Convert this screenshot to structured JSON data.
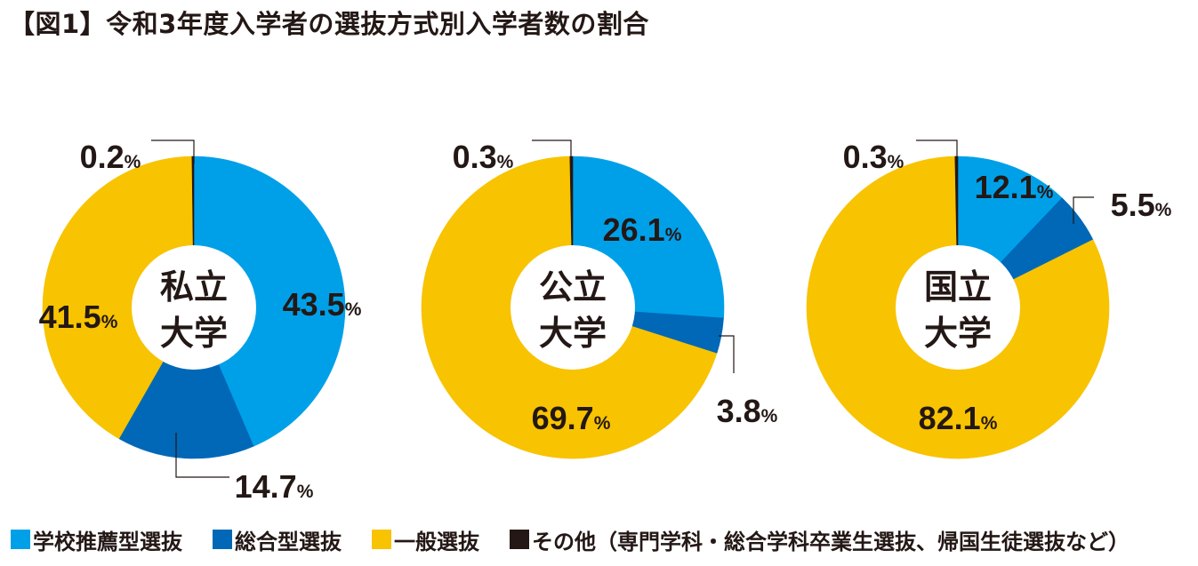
{
  "title": "【図1】令和3年度入学者の選抜方式別入学者数の割合",
  "colors": {
    "school_recommendation": "#00A0E9",
    "comprehensive": "#0068B7",
    "general": "#F8C300",
    "other": "#231815",
    "background": "#FFFFFF"
  },
  "legend": [
    {
      "label": "学校推薦型選抜",
      "color": "#00A0E9"
    },
    {
      "label": "総合型選抜",
      "color": "#0068B7"
    },
    {
      "label": "一般選抜",
      "color": "#F8C300"
    },
    {
      "label": "その他（専門学科・総合学科卒業生選抜、帰国生徒選抜など）",
      "color": "#231815"
    }
  ],
  "chart_data": [
    {
      "type": "pie",
      "center_label": [
        "私立",
        "大学"
      ],
      "categories": [
        "学校推薦型選抜",
        "総合型選抜",
        "一般選抜",
        "その他"
      ],
      "values": [
        43.5,
        14.7,
        41.5,
        0.2
      ],
      "labels": [
        "43.5",
        "14.7",
        "41.5",
        "0.2"
      ],
      "unit": "%"
    },
    {
      "type": "pie",
      "center_label": [
        "公立",
        "大学"
      ],
      "categories": [
        "学校推薦型選抜",
        "総合型選抜",
        "一般選抜",
        "その他"
      ],
      "values": [
        26.1,
        3.8,
        69.7,
        0.3
      ],
      "labels": [
        "26.1",
        "3.8",
        "69.7",
        "0.3"
      ],
      "unit": "%"
    },
    {
      "type": "pie",
      "center_label": [
        "国立",
        "大学"
      ],
      "categories": [
        "学校推薦型選抜",
        "総合型選抜",
        "一般選抜",
        "その他"
      ],
      "values": [
        12.1,
        5.5,
        82.1,
        0.3
      ],
      "labels": [
        "12.1",
        "5.5",
        "82.1",
        "0.3"
      ],
      "unit": "%"
    }
  ]
}
